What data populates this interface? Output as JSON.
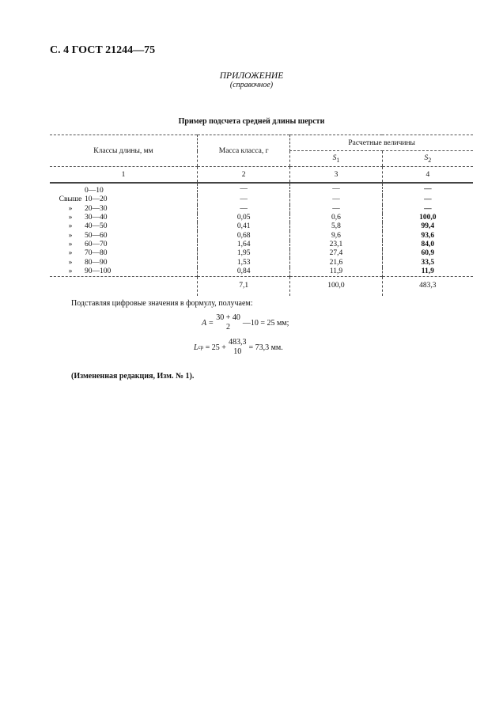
{
  "header": "С. 4 ГОСТ 21244—75",
  "appendix": {
    "title": "ПРИЛОЖЕНИЕ",
    "subtitle": "(справочное)"
  },
  "table": {
    "title": "Пример подсчета средней длины шерсти",
    "headers": {
      "col1": "Классы длины, мм",
      "col2": "Масса класса, г",
      "group": "Расчетные величины",
      "s1": "S",
      "s1_sub": "1",
      "s2": "S",
      "s2_sub": "2"
    },
    "col_numbers": [
      "1",
      "2",
      "3",
      "4"
    ],
    "rows": [
      {
        "prefix": "",
        "range": "0—10",
        "mass": "—",
        "s1": "—",
        "s2": "—"
      },
      {
        "prefix": "Свыше",
        "range": "10—20",
        "mass": "—",
        "s1": "—",
        "s2": "—"
      },
      {
        "prefix": "»",
        "range": "20—30",
        "mass": "—",
        "s1": "—",
        "s2": "—"
      },
      {
        "prefix": "»",
        "range": "30—40",
        "mass": "0,05",
        "s1": "0,6",
        "s2": "100,0"
      },
      {
        "prefix": "»",
        "range": "40—50",
        "mass": "0,41",
        "s1": "5,8",
        "s2": "99,4"
      },
      {
        "prefix": "»",
        "range": "50—60",
        "mass": "0,68",
        "s1": "9,6",
        "s2": "93,6"
      },
      {
        "prefix": "»",
        "range": "60—70",
        "mass": "1,64",
        "s1": "23,1",
        "s2": "84,0"
      },
      {
        "prefix": "»",
        "range": "70—80",
        "mass": "1,95",
        "s1": "27,4",
        "s2": "60,9"
      },
      {
        "prefix": "»",
        "range": "80—90",
        "mass": "1,53",
        "s1": "21,6",
        "s2": "33,5"
      },
      {
        "prefix": "»",
        "range": "90—100",
        "mass": "0,84",
        "s1": "11,9",
        "s2": "11,9"
      }
    ],
    "totals": {
      "mass": "7,1",
      "s1": "100,0",
      "s2": "483,3"
    }
  },
  "text": {
    "intro": "Подставляя цифровые значения в формулу, получаем:",
    "formula_a": {
      "lhs": "A =",
      "num": "30 + 40",
      "den": "2",
      "rest": "—10 = 25 мм;"
    },
    "formula_l": {
      "lhs": "L",
      "sub": "ср",
      "eq": "= 25 +",
      "num": "483,3",
      "den": "10",
      "rest": "= 73,3 мм."
    },
    "note": "(Измененная редакция, Изм. № 1)."
  }
}
